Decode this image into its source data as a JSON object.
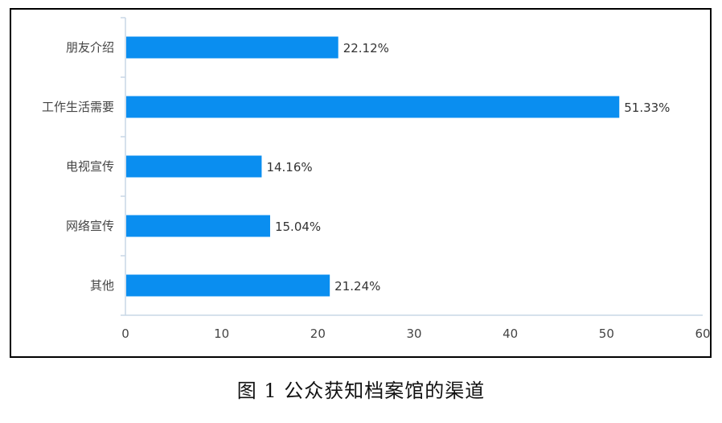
{
  "chart_data": {
    "type": "bar",
    "orientation": "horizontal",
    "categories": [
      "朋友介绍",
      "工作生活需要",
      "电视宣传",
      "网络宣传",
      "其他"
    ],
    "values": [
      22.12,
      51.33,
      14.16,
      15.04,
      21.24
    ],
    "value_labels": [
      "22.12%",
      "51.33%",
      "14.16%",
      "15.04%",
      "21.24%"
    ],
    "x_ticks": [
      "0",
      "10",
      "20",
      "30",
      "40",
      "50",
      "60"
    ],
    "xlim": [
      0,
      60
    ],
    "grid": false,
    "bar_color": "#0a8ef0",
    "axis_color": "#c8d7e6"
  },
  "caption": "图 1  公众获知档案馆的渠道"
}
